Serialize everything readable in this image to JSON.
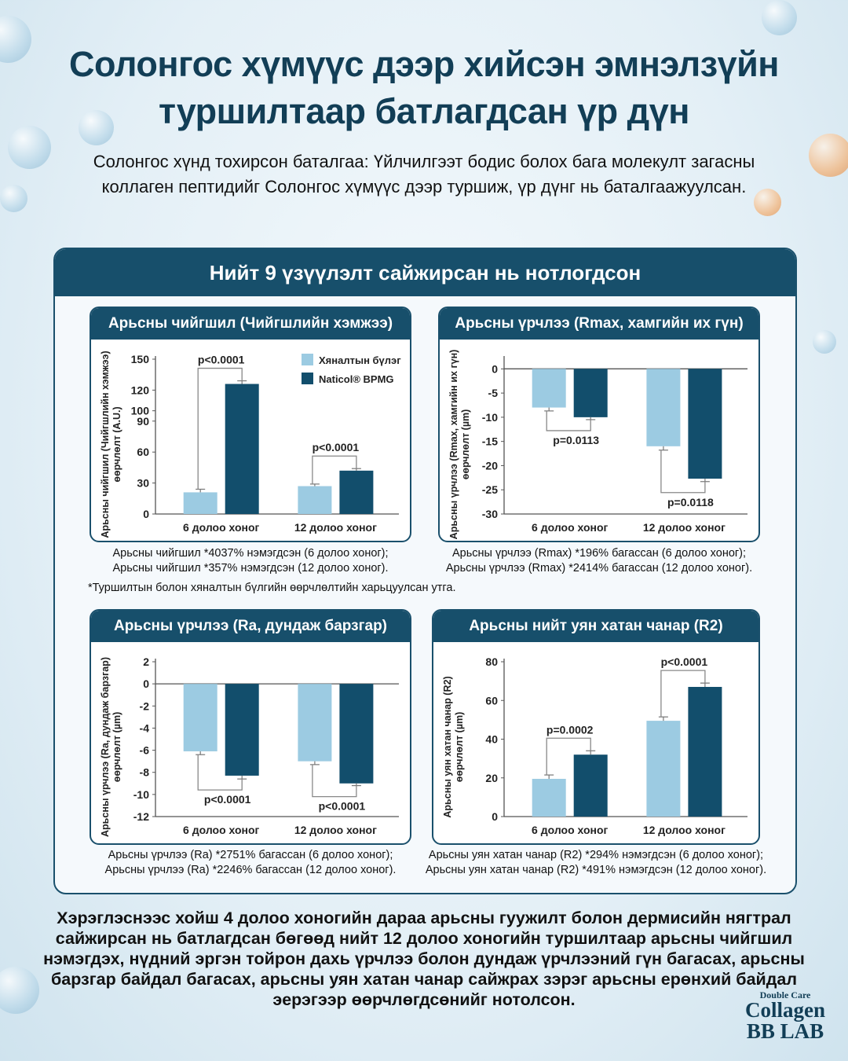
{
  "header": {
    "title_line1": "Солонгос хүмүүс дээр хийсэн эмнэлзүйн",
    "title_line2": "туршилтаар батлагдсан үр дүн",
    "subtitle": "Солонгос хүнд тохирсон баталгаа: Үйлчилгээт бодис болох бага молекулт загасны коллаген пептидийг Солонгос хүмүүс дээр туршиж, үр дүнг нь баталгаажуулсан."
  },
  "panel": {
    "title": "Нийт 9 үзүүлэлт сайжирсан нь нотлогдсон",
    "footnote": "*Туршилтын болон хяналтын бүлгийн өөрчлөлтийн харьцуулсан утга."
  },
  "colors": {
    "control": "#9ccbe2",
    "naticol": "#124e6c",
    "header": "#174f6b",
    "title": "#123e56"
  },
  "legend": {
    "control": "Хяналтын бүлэг",
    "naticol": "Naticol® BPMG"
  },
  "chart_data": [
    {
      "type": "bar",
      "title": "Арьсны чийгшил (Чийгшлийн хэмжээ)",
      "ylabel": [
        "Арьсны чийгшил (Чийгшлийн хэмжээ)",
        "өөрчлөлт (A.U.)"
      ],
      "categories": [
        "6 долоо хоног",
        "12 долоо хоног"
      ],
      "series": [
        {
          "name": "Хяналтын бүлэг",
          "values": [
            21,
            27
          ],
          "errors": [
            3,
            2
          ]
        },
        {
          "name": "Naticol® BPMG",
          "values": [
            126,
            42
          ],
          "errors": [
            3,
            2
          ]
        }
      ],
      "ylim": [
        0,
        150
      ],
      "yticks": [
        0,
        30,
        60,
        90,
        100,
        120,
        150
      ],
      "pvalues": [
        "p<0.0001",
        "p<0.0001"
      ],
      "legend": "top-right",
      "caption": [
        "Арьсны чийгшил *4037% нэмэгдсэн (6 долоо хоног);",
        "Арьсны чийгшил *357% нэмэгдсэн (12 долоо хоног)."
      ]
    },
    {
      "type": "bar",
      "title": "Арьсны үрчлээ (Rmax, хамгийн их гүн)",
      "ylabel": [
        "Арьсны үрчлээ (Rmax, хамгийн их гүн)",
        "өөрчлөлт (µm)"
      ],
      "categories": [
        "6 долоо хоног",
        "12 долоо хоног"
      ],
      "series": [
        {
          "name": "Хяналтын бүлэг",
          "values": [
            -8,
            -16
          ],
          "errors": [
            0.7,
            0.8
          ]
        },
        {
          "name": "Naticol® BPMG",
          "values": [
            -10,
            -22.7
          ],
          "errors": [
            0.5,
            0.6
          ]
        }
      ],
      "ylim": [
        -30,
        2
      ],
      "yticks": [
        0,
        -5,
        -10,
        -15,
        -20,
        -25,
        -30
      ],
      "pvalues": [
        "p=0.0113",
        "p=0.0118"
      ],
      "caption": [
        "Арьсны үрчлээ (Rmax) *196% багассан (6 долоо хоног);",
        "Арьсны үрчлээ (Rmax) *2414% багассан (12 долоо хоног)."
      ]
    },
    {
      "type": "bar",
      "title": "Арьсны үрчлээ (Ra, дундаж барзгар)",
      "ylabel": [
        "Арьсны үрчлээ (Ra, дундаж барзгар)",
        "өөрчлөлт (µm)"
      ],
      "categories": [
        "6 долоо хоног",
        "12 долоо хоног"
      ],
      "series": [
        {
          "name": "Хяналтын бүлэг",
          "values": [
            -6.1,
            -7
          ],
          "errors": [
            0.3,
            0.3
          ]
        },
        {
          "name": "Naticol® BPMG",
          "values": [
            -8.3,
            -9
          ],
          "errors": [
            0.3,
            0.2
          ]
        }
      ],
      "ylim": [
        -12,
        2
      ],
      "yticks": [
        2,
        0,
        -2,
        -4,
        -6,
        -8,
        -10,
        -12
      ],
      "pvalues": [
        "p<0.0001",
        "p<0.0001"
      ],
      "caption": [
        "Арьсны үрчлээ (Ra) *2751% багассан (6 долоо хоног);",
        "Арьсны үрчлээ (Ra) *2246% багассан (12 долоо хоног)."
      ]
    },
    {
      "type": "bar",
      "title": "Арьсны нийт уян хатан чанар (R2)",
      "ylabel": [
        "Арьсны уян хатан чанар (R2)",
        "өөрчлөлт (µm)"
      ],
      "categories": [
        "6 долоо хоног",
        "12 долоо хоног"
      ],
      "series": [
        {
          "name": "Хяналтын бүлэг",
          "values": [
            19.5,
            49.5
          ],
          "errors": [
            2,
            2
          ]
        },
        {
          "name": "Naticol® BPMG",
          "values": [
            32,
            67
          ],
          "errors": [
            2,
            2
          ]
        }
      ],
      "ylim": [
        0,
        80
      ],
      "yticks": [
        0,
        20,
        40,
        60,
        80
      ],
      "pvalues": [
        "p=0.0002",
        "p<0.0001"
      ],
      "caption": [
        "Арьсны уян хатан чанар (R2) *294% нэмэгдсэн (6 долоо хоног);",
        "Арьсны уян хатан чанар (R2) *491% нэмэгдсэн (12 долоо хоног)."
      ]
    }
  ],
  "conclusion": "Хэрэглэснээс хойш 4 долоо хоногийн дараа арьсны гуужилт болон дермисийн нягтрал сайжирсан нь батлагдсан бөгөөд нийт 12 долоо хоногийн туршилтаар арьсны чийгшил нэмэгдэх, нүдний эргэн тойрон дахь үрчлээ болон дундаж үрчлээний гүн багасах, арьсны барзгар байдал багасах, арьсны уян хатан чанар сайжрах зэрэг арьсны ерөнхий байдал эерэгээр өөрчлөгдсөнийг нотолсон.",
  "logo": {
    "line1": "Double Care",
    "line2": "Collagen",
    "line3": "BB LAB"
  }
}
